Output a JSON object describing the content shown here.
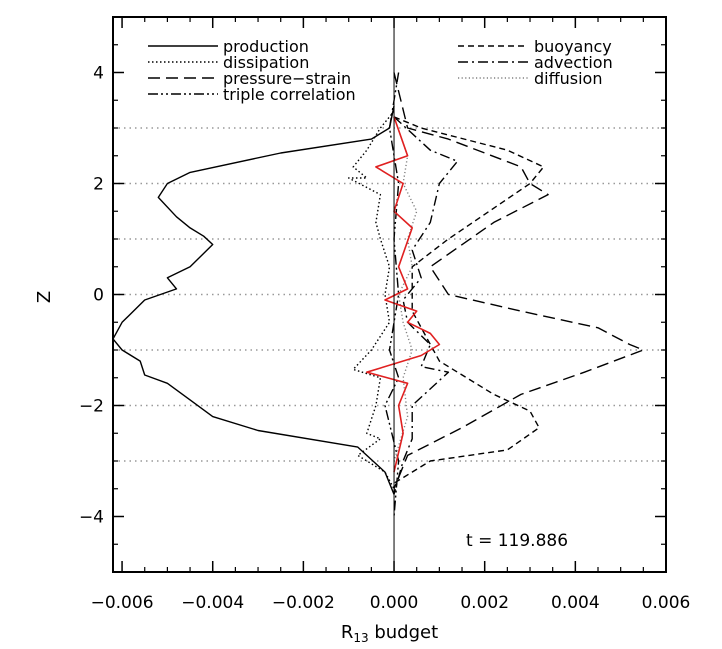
{
  "chart_data": {
    "type": "line",
    "xlabel": "R",
    "xlabel_sub": "13",
    "xlabel_suffix": " budget",
    "ylabel": "Z",
    "xlim": [
      -0.0062,
      0.006
    ],
    "ylim": [
      -5,
      5
    ],
    "xticks": [
      -0.006,
      -0.004,
      -0.002,
      0.0,
      0.002,
      0.004,
      0.006
    ],
    "xtick_labels": [
      "−0.006",
      "−0.004",
      "−0.002",
      "0.000",
      "0.002",
      "0.004",
      "0.006"
    ],
    "yticks": [
      -4,
      -2,
      0,
      2,
      4
    ],
    "ytick_labels": [
      "−4",
      "−2",
      "0",
      "2",
      "4"
    ],
    "reference_lines_y": [
      -3,
      -2,
      -1,
      0,
      1,
      2,
      3
    ],
    "annotation": "t = 119.886",
    "legend": {
      "left": [
        "production",
        "dissipation",
        "pressure−strain",
        "triple correlation"
      ],
      "right": [
        "buoyancy",
        "advection",
        "diffusion"
      ]
    },
    "series": [
      {
        "name": "production",
        "style": "solid",
        "color": "#000000",
        "x": [
          0,
          -0.0001,
          -0.0005,
          -0.0025,
          -0.0045,
          -0.005,
          -0.0052,
          -0.0048,
          -0.0045,
          -0.0042,
          -0.004,
          -0.0045,
          -0.005,
          -0.0048,
          -0.0055,
          -0.006,
          -0.0062,
          -0.006,
          -0.0056,
          -0.0055,
          -0.005,
          -0.0045,
          -0.004,
          -0.003,
          -0.0008,
          -0.0002,
          0
        ],
        "y": [
          3.4,
          3.0,
          2.8,
          2.55,
          2.2,
          2.0,
          1.75,
          1.4,
          1.2,
          1.05,
          0.9,
          0.5,
          0.3,
          0.1,
          -0.1,
          -0.5,
          -0.8,
          -1.0,
          -1.2,
          -1.45,
          -1.6,
          -1.9,
          -2.2,
          -2.45,
          -2.75,
          -3.2,
          -3.6
        ]
      },
      {
        "name": "dissipation",
        "style": "dotted",
        "color": "#000000",
        "x": [
          0.0,
          -0.0003,
          -0.0006,
          -0.0009,
          -0.0006,
          -0.001,
          -0.0003,
          -0.0004,
          -0.0003,
          -0.0001,
          -0.0002,
          -0.0001,
          -0.0005,
          -0.0009,
          -0.0003,
          -0.0004,
          -0.0006,
          -0.0003,
          -0.0008,
          -0.0002,
          0.0
        ],
        "y": [
          3.3,
          3.0,
          2.6,
          2.3,
          2.1,
          2.1,
          1.8,
          1.3,
          1.0,
          0.5,
          0.0,
          -0.5,
          -1.0,
          -1.35,
          -1.5,
          -2.0,
          -2.5,
          -2.6,
          -2.9,
          -3.2,
          -3.5
        ]
      },
      {
        "name": "pressure−strain",
        "style": "dashed",
        "color": "#000000",
        "x": [
          0.0,
          0.0003,
          0.0012,
          0.0028,
          0.003,
          0.0034,
          0.0022,
          0.0008,
          0.0012,
          0.0028,
          0.0045,
          0.0052,
          0.0055,
          0.0042,
          0.0028,
          0.0015,
          0.0003,
          0.0
        ],
        "y": [
          4.0,
          3.0,
          2.8,
          2.3,
          2.0,
          1.8,
          1.3,
          0.5,
          0.0,
          -0.3,
          -0.6,
          -0.9,
          -1.0,
          -1.4,
          -1.8,
          -2.4,
          -2.9,
          -3.5
        ]
      },
      {
        "name": "triple correlation",
        "style": "dash-dot-dot",
        "color": "#000000",
        "x": [
          0.0001,
          -0.0001,
          0.0001,
          0.0,
          0.0001,
          -0.0001,
          0.0001,
          -0.0002,
          0.0001,
          0.0
        ],
        "y": [
          4.0,
          3.0,
          2.0,
          1.0,
          0.0,
          -1.0,
          -1.5,
          -2.0,
          -3.0,
          -4.0
        ]
      },
      {
        "name": "buoyancy",
        "style": "short-dashed",
        "color": "#000000",
        "x": [
          0.0,
          0.0006,
          0.0025,
          0.0033,
          0.003,
          0.0012,
          0.0004,
          0.0004,
          0.001,
          0.0022,
          0.003,
          0.0032,
          0.0025,
          0.0008,
          0.0
        ],
        "y": [
          3.2,
          3.0,
          2.6,
          2.3,
          2.0,
          1.0,
          0.5,
          -0.3,
          -1.2,
          -1.8,
          -2.1,
          -2.4,
          -2.8,
          -3.0,
          -3.4
        ]
      },
      {
        "name": "advection",
        "style": "dash-dot",
        "color": "#000000",
        "x": [
          0.0,
          0.0008,
          0.0014,
          0.001,
          0.0008,
          0.0004,
          0.0006,
          0.0002,
          0.0003,
          0.0008,
          0.0006,
          0.0012,
          0.0004,
          0.0004,
          0.0002,
          0.0
        ],
        "y": [
          3.2,
          2.6,
          2.4,
          2.0,
          1.3,
          0.8,
          0.3,
          -0.1,
          -0.5,
          -0.9,
          -1.3,
          -1.4,
          -2.0,
          -2.6,
          -3.0,
          -3.6
        ]
      },
      {
        "name": "diffusion",
        "style": "thin-dotted",
        "color": "#808080",
        "x": [
          0.0,
          0.0003,
          0.0002,
          0.0005,
          0.0003,
          0.0004,
          0.0001,
          0.0002,
          0.0004,
          0.0002,
          0.0003,
          0.0
        ],
        "y": [
          3.2,
          2.5,
          2.0,
          1.5,
          1.0,
          0.5,
          0.0,
          -0.5,
          -1.0,
          -1.5,
          -2.2,
          -3.0
        ]
      },
      {
        "name": "",
        "style": "solid",
        "color": "#e02020",
        "x": [
          0.0,
          0.0003,
          -0.0004,
          0.0002,
          0.0,
          0.0004,
          0.0001,
          0.0003,
          -0.0002,
          0.0005,
          0.0003,
          0.0008,
          0.001,
          0.0006,
          -0.0006,
          0.0003,
          0.0001,
          0.0002,
          0.0
        ],
        "y": [
          3.2,
          2.5,
          2.3,
          2.0,
          1.5,
          1.2,
          0.5,
          0.1,
          -0.1,
          -0.3,
          -0.5,
          -0.7,
          -0.9,
          -1.1,
          -1.4,
          -1.6,
          -2.0,
          -2.5,
          -3.2
        ]
      }
    ]
  }
}
